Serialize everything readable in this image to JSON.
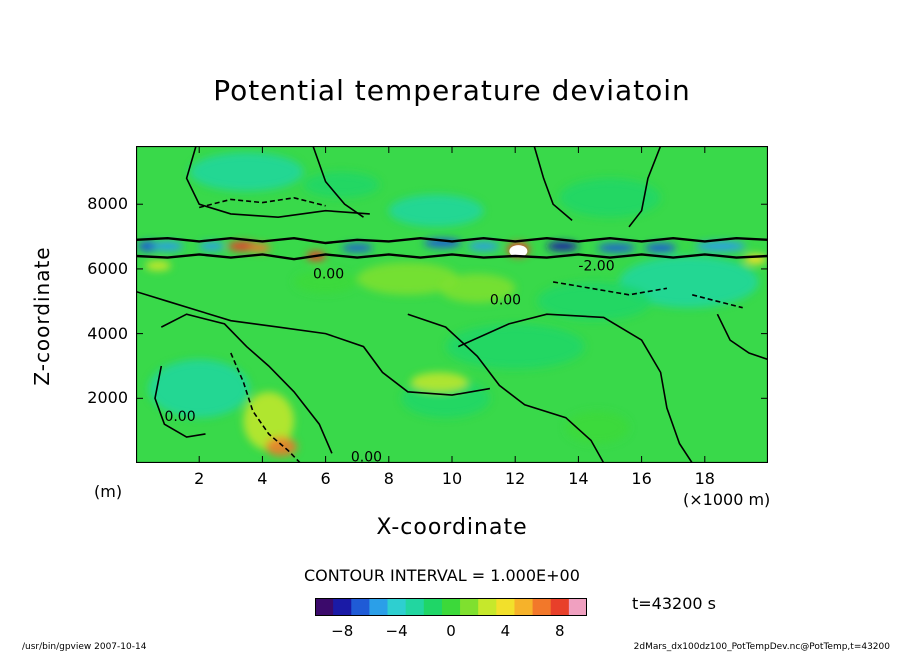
{
  "chart_data": {
    "type": "heatmap",
    "title": "Potential temperature deviatoin",
    "xlabel": "X-coordinate",
    "ylabel": "Z-coordinate",
    "x_unit_label": "(×1000 m)",
    "y_unit_label": "(m)",
    "xlim": [
      0,
      20
    ],
    "ylim": [
      0,
      9800
    ],
    "x_ticks": [
      "2",
      "4",
      "6",
      "8",
      "10",
      "12",
      "14",
      "16",
      "18"
    ],
    "y_ticks": [
      "2000",
      "4000",
      "6000",
      "8000"
    ],
    "contour_labels": [
      "-2.00",
      "0.00",
      "0.00",
      "0.00",
      "0.00"
    ],
    "contour_interval_text": "CONTOUR INTERVAL = 1.000E+00",
    "time_text": "t=43200 s",
    "colorbar": {
      "range": [
        -10,
        10
      ],
      "tick_labels": [
        "−8",
        "−4",
        "0",
        "4",
        "8"
      ],
      "colors": [
        "#3b0a6b",
        "#1a1aa6",
        "#1f5bd6",
        "#2b9fe8",
        "#2ecfd0",
        "#22d6a0",
        "#1fd667",
        "#3cd93a",
        "#7fe02f",
        "#c6e82b",
        "#f2e02b",
        "#f6b22a",
        "#f2782a",
        "#e8402a",
        "#f0a0c0"
      ]
    },
    "footer_left": "/usr/bin/gpview   2007-10-14",
    "footer_right": "2dMars_dx100dz100_PotTempDev.nc@PotTemp,t=43200"
  }
}
